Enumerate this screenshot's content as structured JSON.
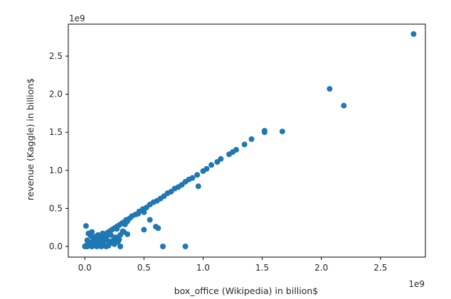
{
  "chart_data": {
    "type": "scatter",
    "xlabel": "box_office (Wikipedia) in billion$",
    "ylabel": "revenue (Kaggle) in billion$",
    "x_multiplier": "1e9",
    "y_multiplier": "1e9",
    "xlim": [
      -0.14,
      2.88
    ],
    "ylim": [
      -0.14,
      2.92
    ],
    "xticks": [
      0.0,
      0.5,
      1.0,
      1.5,
      2.0,
      2.5
    ],
    "xtick_labels": [
      "0.0",
      "0.5",
      "1.0",
      "1.5",
      "2.0",
      "2.5"
    ],
    "yticks": [
      0.0,
      0.5,
      1.0,
      1.5,
      2.0,
      2.5
    ],
    "ytick_labels": [
      "0.0",
      "0.5",
      "1.0",
      "1.5",
      "2.0",
      "2.5"
    ],
    "grid": false,
    "marker_color": "#1f77b4",
    "points": [
      [
        2.78,
        2.79
      ],
      [
        2.07,
        2.07
      ],
      [
        2.19,
        1.85
      ],
      [
        1.67,
        1.51
      ],
      [
        1.52,
        1.52
      ],
      [
        1.52,
        1.5
      ],
      [
        1.41,
        1.41
      ],
      [
        1.35,
        1.34
      ],
      [
        1.28,
        1.27
      ],
      [
        1.25,
        1.24
      ],
      [
        1.22,
        1.21
      ],
      [
        1.15,
        1.15
      ],
      [
        1.12,
        1.11
      ],
      [
        1.07,
        1.07
      ],
      [
        1.03,
        1.02
      ],
      [
        1.0,
        0.99
      ],
      [
        0.96,
        0.79
      ],
      [
        0.95,
        0.94
      ],
      [
        0.91,
        0.9
      ],
      [
        0.88,
        0.88
      ],
      [
        0.85,
        0.85
      ],
      [
        0.82,
        0.81
      ],
      [
        0.79,
        0.78
      ],
      [
        0.76,
        0.76
      ],
      [
        0.73,
        0.72
      ],
      [
        0.7,
        0.7
      ],
      [
        0.67,
        0.66
      ],
      [
        0.64,
        0.63
      ],
      [
        0.61,
        0.6
      ],
      [
        0.58,
        0.58
      ],
      [
        0.55,
        0.55
      ],
      [
        0.52,
        0.51
      ],
      [
        0.49,
        0.49
      ],
      [
        0.46,
        0.46
      ],
      [
        0.43,
        0.42
      ],
      [
        0.4,
        0.4
      ],
      [
        0.38,
        0.37
      ],
      [
        0.35,
        0.35
      ],
      [
        0.33,
        0.32
      ],
      [
        0.31,
        0.3
      ],
      [
        0.29,
        0.28
      ],
      [
        0.27,
        0.26
      ],
      [
        0.25,
        0.24
      ],
      [
        0.23,
        0.22
      ],
      [
        0.21,
        0.2
      ],
      [
        0.19,
        0.18
      ],
      [
        0.17,
        0.16
      ],
      [
        0.15,
        0.14
      ],
      [
        0.13,
        0.12
      ],
      [
        0.11,
        0.1
      ],
      [
        0.09,
        0.08
      ],
      [
        0.07,
        0.06
      ],
      [
        0.05,
        0.04
      ],
      [
        0.03,
        0.02
      ],
      [
        0.01,
        0.01
      ],
      [
        0.0,
        0.0
      ],
      [
        0.02,
        0.0
      ],
      [
        0.04,
        0.01
      ],
      [
        0.06,
        0.0
      ],
      [
        0.08,
        0.02
      ],
      [
        0.1,
        0.0
      ],
      [
        0.12,
        0.01
      ],
      [
        0.14,
        0.0
      ],
      [
        0.16,
        0.02
      ],
      [
        0.18,
        0.0
      ],
      [
        0.2,
        0.01
      ],
      [
        0.22,
        0.05
      ],
      [
        0.24,
        0.08
      ],
      [
        0.26,
        0.12
      ],
      [
        0.28,
        0.06
      ],
      [
        0.3,
        0.15
      ],
      [
        0.32,
        0.2
      ],
      [
        0.01,
        0.27
      ],
      [
        0.03,
        0.17
      ],
      [
        0.05,
        0.14
      ],
      [
        0.06,
        0.19
      ],
      [
        0.02,
        0.08
      ],
      [
        0.04,
        0.05
      ],
      [
        0.27,
        0.23
      ],
      [
        0.36,
        0.33
      ],
      [
        0.34,
        0.29
      ],
      [
        0.45,
        0.43
      ],
      [
        0.5,
        0.45
      ],
      [
        0.55,
        0.35
      ],
      [
        0.6,
        0.26
      ],
      [
        0.62,
        0.24
      ],
      [
        0.5,
        0.22
      ],
      [
        0.33,
        0.19
      ],
      [
        0.36,
        0.16
      ],
      [
        0.29,
        0.09
      ],
      [
        0.16,
        0.08
      ],
      [
        0.2,
        0.07
      ],
      [
        0.12,
        0.05
      ],
      [
        0.18,
        0.12
      ],
      [
        0.22,
        0.15
      ],
      [
        0.14,
        0.1
      ],
      [
        0.66,
        0.0
      ],
      [
        0.85,
        0.0
      ],
      [
        0.3,
        0.0
      ],
      [
        0.25,
        0.03
      ],
      [
        0.08,
        0.11
      ],
      [
        0.1,
        0.09
      ],
      [
        0.11,
        0.15
      ],
      [
        0.15,
        0.17
      ],
      [
        0.09,
        0.13
      ],
      [
        0.07,
        0.1
      ]
    ]
  }
}
